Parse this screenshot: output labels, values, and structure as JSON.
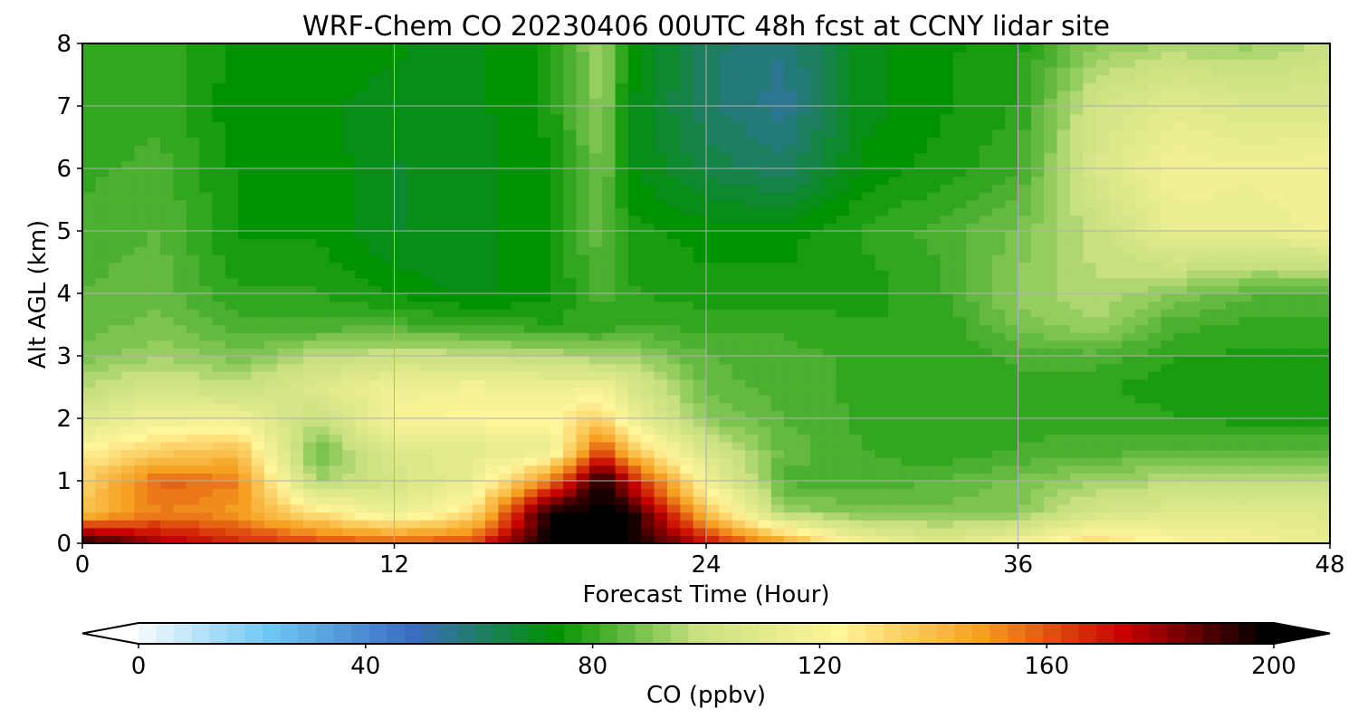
{
  "chart_data": {
    "type": "heatmap",
    "title": "WRF-Chem CO  20230406 00UTC 48h fcst at CCNY lidar site",
    "xlabel": "Forecast Time (Hour)",
    "ylabel": "Alt AGL (km)",
    "xlim": [
      0,
      48
    ],
    "ylim": [
      0,
      8
    ],
    "x_ticks": [
      "0",
      "12",
      "24",
      "36",
      "48"
    ],
    "y_ticks": [
      "0",
      "1",
      "2",
      "3",
      "4",
      "5",
      "6",
      "7",
      "8"
    ],
    "grid": true,
    "x": [
      0,
      3,
      6,
      9,
      12,
      15,
      18,
      20,
      21,
      24,
      27,
      30,
      33,
      36,
      39,
      42,
      45,
      48
    ],
    "y": [
      0,
      0.5,
      1,
      1.5,
      2,
      2.5,
      3,
      3.5,
      4,
      5,
      6,
      7,
      8
    ],
    "z": [
      [
        200,
        180,
        170,
        165,
        160,
        165,
        200,
        200,
        200,
        175,
        150,
        120,
        110,
        120,
        135,
        125,
        120,
        115
      ],
      [
        140,
        155,
        150,
        130,
        115,
        130,
        200,
        200,
        200,
        140,
        95,
        90,
        90,
        92,
        105,
        110,
        112,
        110
      ],
      [
        135,
        160,
        155,
        95,
        105,
        115,
        155,
        200,
        175,
        120,
        85,
        84,
        86,
        90,
        95,
        98,
        98,
        98
      ],
      [
        125,
        135,
        140,
        88,
        110,
        112,
        115,
        165,
        140,
        105,
        88,
        83,
        80,
        83,
        84,
        86,
        86,
        86
      ],
      [
        110,
        118,
        118,
        100,
        122,
        125,
        125,
        135,
        118,
        92,
        86,
        82,
        80,
        82,
        82,
        80,
        78,
        78
      ],
      [
        98,
        105,
        100,
        110,
        118,
        120,
        118,
        120,
        108,
        88,
        84,
        82,
        80,
        81,
        80,
        78,
        78,
        78
      ],
      [
        90,
        95,
        90,
        98,
        102,
        100,
        98,
        95,
        95,
        86,
        84,
        82,
        80,
        84,
        85,
        80,
        79,
        79
      ],
      [
        88,
        90,
        84,
        84,
        84,
        82,
        80,
        80,
        82,
        82,
        82,
        80,
        80,
        90,
        95,
        84,
        82,
        82
      ],
      [
        86,
        88,
        80,
        80,
        76,
        72,
        76,
        85,
        80,
        78,
        78,
        78,
        82,
        93,
        98,
        92,
        86,
        86
      ],
      [
        84,
        86,
        76,
        76,
        70,
        72,
        76,
        88,
        78,
        75,
        75,
        80,
        84,
        90,
        100,
        115,
        115,
        118
      ],
      [
        82,
        84,
        76,
        76,
        70,
        72,
        76,
        90,
        74,
        66,
        62,
        74,
        78,
        82,
        108,
        120,
        118,
        120
      ],
      [
        80,
        82,
        74,
        74,
        72,
        72,
        78,
        94,
        74,
        62,
        56,
        72,
        76,
        80,
        104,
        112,
        108,
        108
      ],
      [
        80,
        82,
        76,
        76,
        74,
        72,
        78,
        96,
        76,
        62,
        58,
        72,
        76,
        78,
        92,
        96,
        94,
        100
      ]
    ],
    "colorbar": {
      "label": "CO  (ppbv)",
      "ticks": [
        "0",
        "40",
        "80",
        "120",
        "160",
        "200"
      ],
      "range": [
        0,
        200
      ],
      "extend": "both",
      "colormap": [
        "#ffffff",
        "#6cc6f2",
        "#3a6cc0",
        "#009200",
        "#c8e080",
        "#fff59a",
        "#f5a020",
        "#c80000",
        "#000000"
      ]
    }
  }
}
